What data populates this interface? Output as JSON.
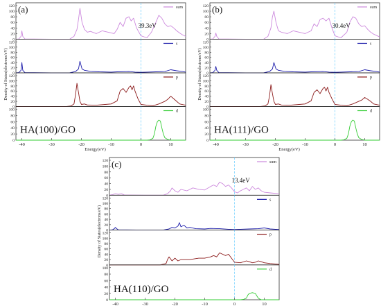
{
  "chart_data": [
    {
      "type": "line",
      "label": "(a)",
      "system": "HA(100)/GO",
      "gap_label": "39.3eV",
      "xlabel": "Energy(eV)",
      "ylabel": "Density of States(electrons/eV)",
      "xlim": [
        -42,
        15
      ],
      "xticks": [
        -40,
        -30,
        -20,
        -10,
        0,
        10
      ],
      "fermi_x": 0,
      "colors": {
        "sum": "#cc88dd",
        "s": "#1a1aaa",
        "p": "#8b1a1a",
        "d": "#33cc33"
      },
      "panels": [
        {
          "name": "sum",
          "ylim": [
            0,
            120
          ],
          "yticks": [
            0,
            20,
            40,
            60,
            80,
            100,
            120
          ],
          "x": [
            -42,
            -41,
            -40.3,
            -40,
            -39.7,
            -39,
            -30,
            -24,
            -22.5,
            -21.5,
            -21,
            -20.5,
            -19.8,
            -19,
            -18,
            -17,
            -15,
            -13,
            -11,
            -9,
            -8,
            -7,
            -6,
            -5,
            -4,
            -3.3,
            -2.5,
            -1.5,
            0,
            2,
            3.5,
            5,
            6,
            7,
            8,
            9,
            10,
            11,
            12,
            13,
            14,
            15
          ],
          "y": [
            0,
            1,
            10,
            30,
            10,
            1,
            0,
            0,
            10,
            35,
            70,
            110,
            60,
            35,
            25,
            28,
            20,
            30,
            25,
            20,
            35,
            60,
            45,
            75,
            80,
            65,
            75,
            40,
            12,
            5,
            25,
            60,
            85,
            75,
            55,
            45,
            48,
            40,
            30,
            22,
            15,
            10
          ]
        },
        {
          "name": "s",
          "ylim": [
            0,
            120
          ],
          "yticks": [
            0,
            20,
            40,
            60,
            80,
            100,
            120
          ],
          "x": [
            -42,
            -41,
            -40.3,
            -40,
            -39.7,
            -39,
            -30,
            -24,
            -22,
            -21,
            -20.5,
            -19.8,
            -19,
            -17,
            -14,
            -10,
            -8,
            -4,
            -2,
            0,
            2,
            5,
            8,
            10,
            12,
            14,
            15
          ],
          "y": [
            0,
            1,
            10,
            40,
            10,
            1,
            0,
            0,
            5,
            15,
            45,
            15,
            10,
            6,
            4,
            3,
            4,
            5,
            3,
            2,
            3,
            4,
            5,
            12,
            8,
            5,
            3
          ]
        },
        {
          "name": "p",
          "ylim": [
            0,
            120
          ],
          "yticks": [
            0,
            20,
            40,
            60,
            80,
            100,
            120
          ],
          "x": [
            -42,
            -25,
            -23.5,
            -22.5,
            -22,
            -21.5,
            -21,
            -20.5,
            -20,
            -19,
            -18,
            -15,
            -12,
            -10,
            -8,
            -7,
            -6,
            -5,
            -4,
            -3.5,
            -3,
            -2.5,
            -2,
            -1,
            0,
            2,
            4,
            6,
            8,
            9,
            10,
            11,
            12,
            13,
            15
          ],
          "y": [
            0,
            0,
            2,
            10,
            45,
            90,
            55,
            20,
            8,
            10,
            6,
            5,
            8,
            10,
            22,
            60,
            70,
            55,
            75,
            80,
            65,
            80,
            60,
            30,
            8,
            5,
            3,
            10,
            20,
            28,
            40,
            30,
            20,
            10,
            5
          ]
        },
        {
          "name": "d",
          "ylim": [
            0,
            100
          ],
          "yticks": [
            0,
            20,
            40,
            60,
            80,
            100
          ],
          "x": [
            -42,
            2,
            3,
            4,
            4.5,
            5,
            5.5,
            6,
            6.5,
            7,
            7.5,
            8,
            9,
            10,
            15
          ],
          "y": [
            0,
            0,
            1,
            6,
            20,
            45,
            60,
            65,
            62,
            40,
            20,
            8,
            2,
            0,
            0
          ]
        }
      ]
    },
    {
      "type": "line",
      "label": "(b)",
      "system": "HA(111)/GO",
      "gap_label": "30.4eV",
      "xlabel": "Energy(eV)",
      "ylabel": "Density of States(electrons/eV)",
      "xlim": [
        -42,
        15
      ],
      "xticks": [
        -40,
        -30,
        -20,
        -10,
        0,
        10
      ],
      "fermi_x": 0,
      "colors": {
        "sum": "#cc88dd",
        "s": "#1a1aaa",
        "p": "#8b1a1a",
        "d": "#33cc33"
      },
      "panels": [
        {
          "name": "sum",
          "ylim": [
            0,
            120
          ],
          "yticks": [
            0,
            20,
            40,
            60,
            80,
            100,
            120
          ],
          "x": [
            -42,
            -41,
            -40.3,
            -40,
            -39.7,
            -39,
            -30,
            -24,
            -22.5,
            -21.5,
            -21,
            -20.5,
            -19.8,
            -19,
            -18,
            -16,
            -14,
            -12,
            -10,
            -8,
            -7,
            -6,
            -5,
            -4,
            -3,
            -2,
            -1,
            0,
            2,
            4,
            5,
            6,
            7,
            8,
            9,
            10,
            11,
            12,
            13,
            15
          ],
          "y": [
            0,
            1,
            10,
            22,
            10,
            1,
            0,
            0,
            10,
            40,
            80,
            100,
            60,
            30,
            25,
            20,
            30,
            25,
            20,
            30,
            55,
            45,
            70,
            75,
            65,
            75,
            40,
            12,
            5,
            25,
            60,
            80,
            75,
            55,
            45,
            48,
            35,
            25,
            18,
            8
          ]
        },
        {
          "name": "s",
          "ylim": [
            0,
            120
          ],
          "yticks": [
            0,
            20,
            40,
            60,
            80,
            100,
            120
          ],
          "x": [
            -42,
            -41,
            -40.3,
            -40,
            -39.7,
            -39,
            -30,
            -24,
            -22,
            -21,
            -20.5,
            -19.8,
            -19,
            -17,
            -14,
            -10,
            -8,
            -4,
            -2,
            0,
            2,
            5,
            8,
            10,
            12,
            14,
            15
          ],
          "y": [
            0,
            1,
            10,
            25,
            10,
            1,
            0,
            0,
            5,
            15,
            40,
            15,
            10,
            6,
            4,
            3,
            4,
            5,
            3,
            2,
            3,
            4,
            5,
            12,
            8,
            5,
            3
          ]
        },
        {
          "name": "p",
          "ylim": [
            0,
            120
          ],
          "yticks": [
            0,
            20,
            40,
            60,
            80,
            100,
            120
          ],
          "x": [
            -42,
            -25,
            -23.5,
            -22.5,
            -22,
            -21.5,
            -21,
            -20.5,
            -20,
            -19,
            -18,
            -15,
            -12,
            -10,
            -8,
            -7,
            -6,
            -5,
            -4,
            -3.5,
            -3,
            -2.5,
            -2,
            -1,
            0,
            2,
            4,
            6,
            8,
            9,
            10,
            11,
            12,
            13,
            15
          ],
          "y": [
            0,
            0,
            2,
            10,
            40,
            85,
            50,
            20,
            8,
            10,
            6,
            5,
            8,
            10,
            22,
            55,
            65,
            50,
            70,
            75,
            60,
            75,
            55,
            30,
            8,
            5,
            3,
            10,
            20,
            25,
            35,
            28,
            20,
            10,
            5
          ]
        },
        {
          "name": "d",
          "ylim": [
            0,
            100
          ],
          "yticks": [
            0,
            20,
            40,
            60,
            80,
            100
          ],
          "x": [
            -42,
            2,
            3,
            4,
            4.5,
            5,
            5.5,
            6,
            6.5,
            7,
            7.5,
            8,
            9,
            10,
            15
          ],
          "y": [
            0,
            0,
            1,
            6,
            20,
            45,
            60,
            65,
            62,
            40,
            20,
            8,
            2,
            0,
            0
          ]
        }
      ]
    },
    {
      "type": "line",
      "label": "(c)",
      "system": "HA(110)/GO",
      "gap_label": "13.4eV",
      "xlabel": "Energy(eV)",
      "ylabel": "Density of States(electrons/eV)",
      "xlim": [
        -42,
        15
      ],
      "xticks": [
        -40,
        -30,
        -20,
        -10,
        0,
        10
      ],
      "fermi_x": 0,
      "colors": {
        "sum": "#cc88dd",
        "s": "#1a1aaa",
        "p": "#8b1a1a",
        "d": "#33cc33"
      },
      "panels": [
        {
          "name": "sum",
          "ylim": [
            0,
            120
          ],
          "yticks": [
            0,
            20,
            40,
            60,
            80,
            100,
            120
          ],
          "x": [
            -42,
            -41,
            -40,
            -39,
            -38,
            -37,
            -30,
            -24,
            -22.5,
            -21.5,
            -21,
            -20,
            -19,
            -18,
            -16,
            -14,
            -12,
            -10,
            -8,
            -7,
            -6,
            -5,
            -4,
            -3,
            -2,
            -1,
            0,
            1,
            2,
            3,
            4,
            5,
            6,
            7,
            8,
            9,
            10,
            12,
            15
          ],
          "y": [
            0,
            2,
            5,
            3,
            5,
            1,
            0,
            0,
            5,
            15,
            25,
            15,
            10,
            20,
            15,
            25,
            20,
            18,
            30,
            35,
            30,
            45,
            40,
            30,
            35,
            25,
            12,
            8,
            15,
            20,
            25,
            15,
            30,
            20,
            25,
            15,
            10,
            8,
            5
          ]
        },
        {
          "name": "s",
          "ylim": [
            0,
            120
          ],
          "yticks": [
            0,
            20,
            40,
            60,
            80,
            100,
            120
          ],
          "x": [
            -42,
            -41,
            -40.3,
            -40,
            -39.7,
            -39,
            -30,
            -24,
            -22,
            -21,
            -20,
            -19,
            -18.5,
            -18,
            -17,
            -16,
            -15,
            -13,
            -10,
            -8,
            -5,
            -2,
            0,
            2,
            5,
            8,
            10,
            12,
            15
          ],
          "y": [
            0,
            1,
            6,
            10,
            6,
            1,
            0,
            0,
            4,
            10,
            8,
            15,
            28,
            12,
            18,
            8,
            10,
            5,
            4,
            6,
            5,
            3,
            2,
            3,
            4,
            5,
            8,
            4,
            2
          ]
        },
        {
          "name": "p",
          "ylim": [
            0,
            120
          ],
          "yticks": [
            0,
            20,
            40,
            60,
            80,
            100,
            120
          ],
          "x": [
            -42,
            -25,
            -23,
            -22.5,
            -22,
            -21,
            -20,
            -19,
            -18,
            -15,
            -12,
            -10,
            -8,
            -7,
            -6,
            -5,
            -4,
            -3,
            -2,
            -1,
            0,
            2,
            4,
            5,
            6,
            7,
            8,
            9,
            10,
            12,
            15
          ],
          "y": [
            0,
            0,
            5,
            20,
            30,
            15,
            25,
            15,
            20,
            20,
            25,
            25,
            30,
            35,
            30,
            45,
            40,
            35,
            40,
            25,
            10,
            8,
            15,
            12,
            8,
            10,
            15,
            12,
            8,
            5,
            2
          ]
        },
        {
          "name": "d",
          "ylim": [
            0,
            100
          ],
          "yticks": [
            0,
            20,
            40,
            60,
            80,
            100
          ],
          "x": [
            -42,
            2,
            3,
            4,
            4.5,
            5,
            6,
            7,
            7.5,
            8,
            8.5,
            9,
            10,
            15
          ],
          "y": [
            0,
            0,
            1,
            5,
            15,
            20,
            22,
            20,
            12,
            5,
            2,
            0,
            0,
            0
          ]
        }
      ]
    }
  ]
}
